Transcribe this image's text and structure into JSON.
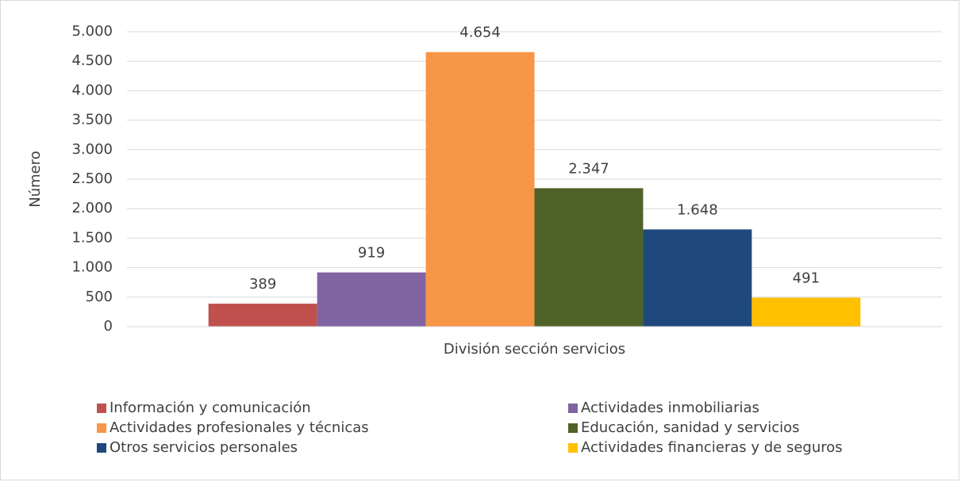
{
  "chart_data": {
    "type": "bar",
    "ylabel": "Número",
    "categories": [
      "División sección servicios"
    ],
    "series": [
      {
        "name": "Información y comunicación",
        "color": "#c0504d",
        "values": [
          389
        ],
        "value_labels": [
          "389"
        ]
      },
      {
        "name": "Actividades inmobiliarias",
        "color": "#8064a2",
        "values": [
          919
        ],
        "value_labels": [
          "919"
        ]
      },
      {
        "name": "Actividades profesionales y técnicas",
        "color": "#f79646",
        "values": [
          4654
        ],
        "value_labels": [
          "4.654"
        ]
      },
      {
        "name": "Educación, sanidad y servicios",
        "color": "#4f6228",
        "values": [
          2347
        ],
        "value_labels": [
          "2.347"
        ]
      },
      {
        "name": "Otros servicios personales",
        "color": "#1f497d",
        "values": [
          1648
        ],
        "value_labels": [
          "1.648"
        ]
      },
      {
        "name": "Actividades financieras y de seguros",
        "color": "#ffc000",
        "values": [
          491
        ],
        "value_labels": [
          "491"
        ]
      }
    ],
    "ylim": [
      0,
      5000
    ],
    "yticks": [
      0,
      500,
      {
        "value": 1000,
        "label": "1.000"
      },
      {
        "value": 1500,
        "label": "1.500"
      },
      {
        "value": 2000,
        "label": "2.000"
      },
      {
        "value": 2500,
        "label": "2.500"
      },
      {
        "value": 3000,
        "label": "3.000"
      },
      {
        "value": 3500,
        "label": "3.500"
      },
      {
        "value": 4000,
        "label": "4.000"
      },
      {
        "value": 4500,
        "label": "4.500"
      },
      {
        "value": 5000,
        "label": "5.000"
      }
    ],
    "grid": true,
    "legend": "bottom"
  }
}
